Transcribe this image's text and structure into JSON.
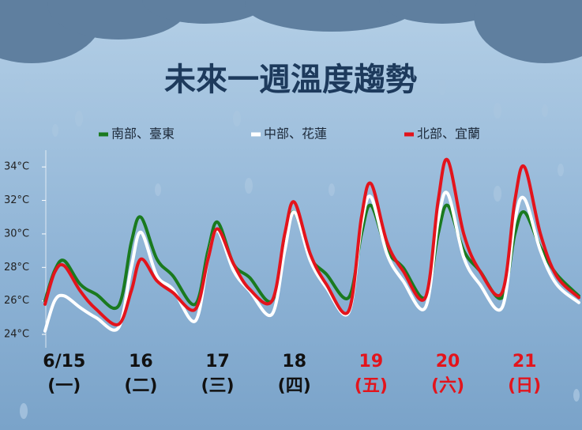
{
  "chart_data": {
    "type": "line",
    "title": "未來一週溫度趨勢",
    "x": [
      6,
      9,
      12,
      17,
      22,
      29,
      33,
      36,
      41,
      46,
      53,
      57,
      60,
      65,
      70,
      77,
      81,
      84,
      89,
      94,
      101,
      105,
      108,
      113,
      118,
      125,
      129,
      132,
      137,
      142,
      149,
      153,
      156,
      161,
      166,
      173
    ],
    "xlim": [
      6,
      174
    ],
    "xticks": [
      {
        "value": 12,
        "label": "6/15"
      },
      {
        "value": 36,
        "label": "16"
      },
      {
        "value": 60,
        "label": "17"
      },
      {
        "value": 84,
        "label": "18"
      },
      {
        "value": 108,
        "label": "19"
      },
      {
        "value": 132,
        "label": "20"
      },
      {
        "value": 156,
        "label": "21"
      }
    ],
    "weekdays": [
      "(一)",
      "(二)",
      "(三)",
      "(四)",
      "(五)",
      "(六)",
      "(日)"
    ],
    "xtick_colors": [
      "#111111",
      "#111111",
      "#111111",
      "#111111",
      "#e3141c",
      "#e3141c",
      "#e3141c"
    ],
    "ylim": [
      23.2,
      35
    ],
    "yticks": [
      {
        "value": 24,
        "label": "24°C"
      },
      {
        "value": 26,
        "label": "26°C"
      },
      {
        "value": 28,
        "label": "28°C"
      },
      {
        "value": 30,
        "label": "30°C"
      },
      {
        "value": 32,
        "label": "32°C"
      },
      {
        "value": 34,
        "label": "34°C"
      }
    ],
    "series": [
      {
        "name": "南部、臺東",
        "color": "#1a7a1f",
        "values": [
          26.0,
          27.8,
          28.4,
          27.0,
          26.4,
          25.7,
          29.5,
          31.0,
          28.5,
          27.5,
          25.8,
          29.0,
          30.7,
          28.2,
          27.4,
          26.0,
          29.5,
          31.3,
          28.6,
          27.6,
          26.2,
          30.0,
          31.7,
          29.0,
          28.0,
          26.2,
          30.0,
          31.7,
          29.0,
          27.8,
          26.2,
          30.0,
          31.3,
          29.2,
          27.6,
          26.3
        ]
      },
      {
        "name": "中部、花蓮",
        "color": "#ffffff",
        "values": [
          24.2,
          26.0,
          26.3,
          25.6,
          25.0,
          24.4,
          28.0,
          30.1,
          27.5,
          26.7,
          24.8,
          28.5,
          30.2,
          27.8,
          26.6,
          25.2,
          29.0,
          31.3,
          28.4,
          26.8,
          25.3,
          30.5,
          32.2,
          28.8,
          27.2,
          25.6,
          30.8,
          32.4,
          28.6,
          27.0,
          25.6,
          30.8,
          32.1,
          29.0,
          27.0,
          25.9
        ]
      },
      {
        "name": "北部、宜蘭",
        "color": "#e3141c",
        "values": [
          25.8,
          27.7,
          28.1,
          26.6,
          25.5,
          24.6,
          26.6,
          28.5,
          27.2,
          26.5,
          25.5,
          28.5,
          30.3,
          28.2,
          26.7,
          26.0,
          30.0,
          31.9,
          28.8,
          27.0,
          25.4,
          31.0,
          33.0,
          29.5,
          27.8,
          26.2,
          32.0,
          34.4,
          30.0,
          27.8,
          26.5,
          32.0,
          34.0,
          30.0,
          27.5,
          26.2
        ]
      }
    ]
  }
}
